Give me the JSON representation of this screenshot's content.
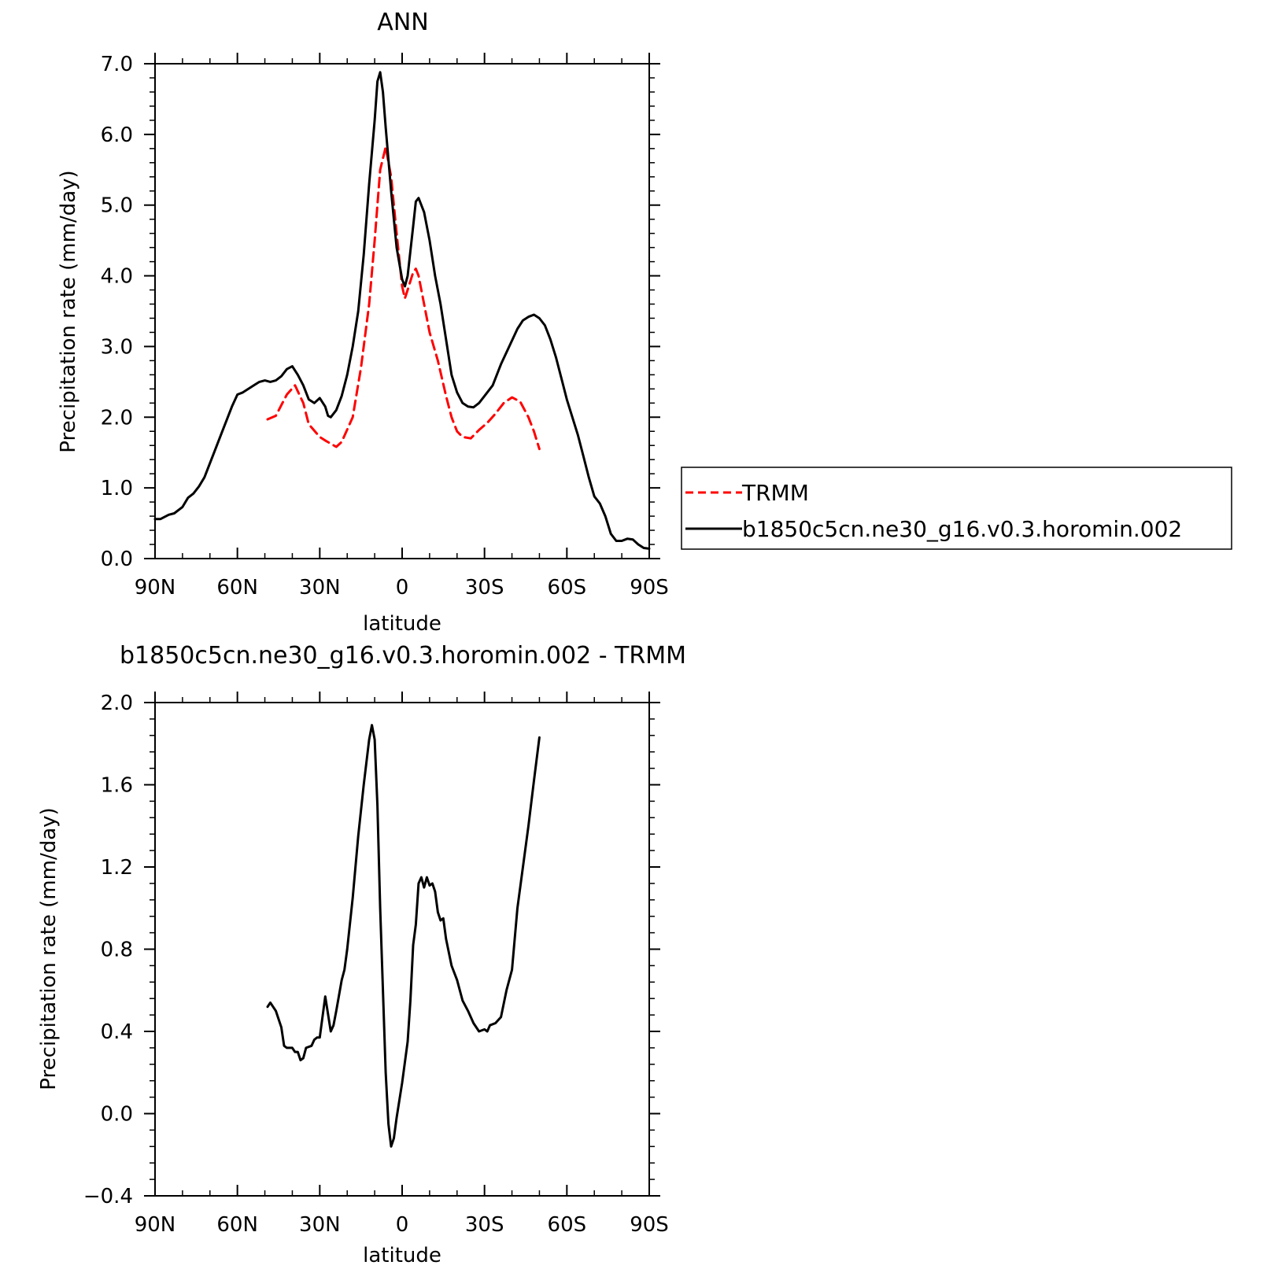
{
  "chart_data": [
    {
      "type": "line",
      "title": "ANN",
      "xlabel": "latitude",
      "ylabel": "Precipitation rate (mm/day)",
      "xlim": [
        90,
        -90
      ],
      "ylim": [
        0,
        7
      ],
      "x_ticks": [
        90,
        60,
        30,
        0,
        -30,
        -60,
        -90
      ],
      "x_tick_labels": [
        "90N",
        "60N",
        "30N",
        "0",
        "30S",
        "60S",
        "90S"
      ],
      "y_ticks": [
        0,
        1,
        2,
        3,
        4,
        5,
        6,
        7
      ],
      "y_tick_labels": [
        "0.0",
        "1.0",
        "2.0",
        "3.0",
        "4.0",
        "5.0",
        "6.0",
        "7.0"
      ],
      "legend_position": "right",
      "series": [
        {
          "name": "TRMM",
          "color": "#ff0000",
          "style": "dashed",
          "points": [
            [
              49,
              1.97
            ],
            [
              46,
              2.02
            ],
            [
              42,
              2.32
            ],
            [
              39,
              2.45
            ],
            [
              36,
              2.2
            ],
            [
              34,
              1.9
            ],
            [
              30,
              1.72
            ],
            [
              28,
              1.67
            ],
            [
              24,
              1.58
            ],
            [
              22,
              1.65
            ],
            [
              18,
              2.0
            ],
            [
              15,
              2.7
            ],
            [
              12,
              3.6
            ],
            [
              10,
              4.5
            ],
            [
              8,
              5.5
            ],
            [
              6,
              5.82
            ],
            [
              4,
              5.4
            ],
            [
              2,
              4.6
            ],
            [
              0,
              3.85
            ],
            [
              -1,
              3.68
            ],
            [
              -2,
              3.8
            ],
            [
              -4,
              4.05
            ],
            [
              -5,
              4.1
            ],
            [
              -6,
              4.0
            ],
            [
              -8,
              3.6
            ],
            [
              -10,
              3.2
            ],
            [
              -13,
              2.8
            ],
            [
              -16,
              2.3
            ],
            [
              -18,
              2.0
            ],
            [
              -20,
              1.8
            ],
            [
              -22,
              1.72
            ],
            [
              -25,
              1.7
            ],
            [
              -28,
              1.82
            ],
            [
              -31,
              1.92
            ],
            [
              -34,
              2.05
            ],
            [
              -37,
              2.2
            ],
            [
              -40,
              2.28
            ],
            [
              -43,
              2.22
            ],
            [
              -46,
              2.0
            ],
            [
              -48,
              1.8
            ],
            [
              -50,
              1.55
            ]
          ]
        },
        {
          "name": "b1850c5cn.ne30_g16.v0.3.horomin.002",
          "color": "#000000",
          "style": "solid",
          "points": [
            [
              90,
              0.56
            ],
            [
              88,
              0.56
            ],
            [
              85,
              0.62
            ],
            [
              83,
              0.64
            ],
            [
              80,
              0.73
            ],
            [
              78,
              0.86
            ],
            [
              76,
              0.92
            ],
            [
              74,
              1.02
            ],
            [
              72,
              1.15
            ],
            [
              70,
              1.35
            ],
            [
              68,
              1.55
            ],
            [
              66,
              1.75
            ],
            [
              64,
              1.95
            ],
            [
              62,
              2.15
            ],
            [
              60,
              2.32
            ],
            [
              58,
              2.35
            ],
            [
              56,
              2.4
            ],
            [
              54,
              2.45
            ],
            [
              52,
              2.5
            ],
            [
              50,
              2.52
            ],
            [
              48,
              2.5
            ],
            [
              46,
              2.52
            ],
            [
              44,
              2.58
            ],
            [
              42,
              2.68
            ],
            [
              40,
              2.72
            ],
            [
              38,
              2.6
            ],
            [
              36,
              2.45
            ],
            [
              34,
              2.25
            ],
            [
              32,
              2.2
            ],
            [
              30,
              2.27
            ],
            [
              28,
              2.15
            ],
            [
              27,
              2.02
            ],
            [
              26,
              2.0
            ],
            [
              24,
              2.1
            ],
            [
              22,
              2.3
            ],
            [
              20,
              2.6
            ],
            [
              18,
              3.0
            ],
            [
              16,
              3.5
            ],
            [
              14,
              4.3
            ],
            [
              12,
              5.3
            ],
            [
              10,
              6.2
            ],
            [
              9,
              6.75
            ],
            [
              8,
              6.88
            ],
            [
              7,
              6.6
            ],
            [
              6,
              6.1
            ],
            [
              4,
              5.2
            ],
            [
              2,
              4.4
            ],
            [
              0,
              3.95
            ],
            [
              -1,
              3.85
            ],
            [
              -2,
              4.0
            ],
            [
              -4,
              4.7
            ],
            [
              -5,
              5.05
            ],
            [
              -6,
              5.1
            ],
            [
              -8,
              4.9
            ],
            [
              -10,
              4.5
            ],
            [
              -12,
              4.0
            ],
            [
              -14,
              3.6
            ],
            [
              -16,
              3.1
            ],
            [
              -18,
              2.6
            ],
            [
              -20,
              2.35
            ],
            [
              -22,
              2.2
            ],
            [
              -24,
              2.15
            ],
            [
              -26,
              2.14
            ],
            [
              -28,
              2.2
            ],
            [
              -30,
              2.3
            ],
            [
              -33,
              2.45
            ],
            [
              -36,
              2.75
            ],
            [
              -39,
              3.0
            ],
            [
              -42,
              3.25
            ],
            [
              -44,
              3.37
            ],
            [
              -46,
              3.42
            ],
            [
              -48,
              3.45
            ],
            [
              -50,
              3.4
            ],
            [
              -52,
              3.3
            ],
            [
              -54,
              3.1
            ],
            [
              -56,
              2.85
            ],
            [
              -58,
              2.55
            ],
            [
              -60,
              2.25
            ],
            [
              -62,
              2.0
            ],
            [
              -64,
              1.75
            ],
            [
              -66,
              1.45
            ],
            [
              -68,
              1.15
            ],
            [
              -70,
              0.88
            ],
            [
              -72,
              0.78
            ],
            [
              -74,
              0.6
            ],
            [
              -76,
              0.35
            ],
            [
              -78,
              0.25
            ],
            [
              -80,
              0.25
            ],
            [
              -82,
              0.28
            ],
            [
              -84,
              0.27
            ],
            [
              -86,
              0.2
            ],
            [
              -88,
              0.15
            ],
            [
              -90,
              0.14
            ]
          ]
        }
      ]
    },
    {
      "type": "line",
      "title": "b1850c5cn.ne30_g16.v0.3.horomin.002 - TRMM",
      "xlabel": "latitude",
      "ylabel": "Precipitation rate (mm/day)",
      "xlim": [
        90,
        -90
      ],
      "ylim": [
        -0.4,
        2.0
      ],
      "x_ticks": [
        90,
        60,
        30,
        0,
        -30,
        -60,
        -90
      ],
      "x_tick_labels": [
        "90N",
        "60N",
        "30N",
        "0",
        "30S",
        "60S",
        "90S"
      ],
      "y_ticks": [
        -0.4,
        0,
        0.4,
        0.8,
        1.2,
        1.6,
        2.0
      ],
      "y_tick_labels": [
        "−0.4",
        "0.0",
        "0.4",
        "0.8",
        "1.2",
        "1.6",
        "2.0"
      ],
      "series": [
        {
          "name": "",
          "color": "#000000",
          "style": "solid",
          "points": [
            [
              49,
              0.52
            ],
            [
              48,
              0.54
            ],
            [
              46,
              0.5
            ],
            [
              44,
              0.42
            ],
            [
              43,
              0.33
            ],
            [
              42,
              0.32
            ],
            [
              40,
              0.32
            ],
            [
              39,
              0.3
            ],
            [
              38,
              0.3
            ],
            [
              37,
              0.26
            ],
            [
              36,
              0.27
            ],
            [
              35,
              0.32
            ],
            [
              33,
              0.33
            ],
            [
              32,
              0.36
            ],
            [
              31,
              0.37
            ],
            [
              30,
              0.37
            ],
            [
              28,
              0.57
            ],
            [
              26,
              0.4
            ],
            [
              25,
              0.43
            ],
            [
              24,
              0.5
            ],
            [
              22,
              0.65
            ],
            [
              21,
              0.7
            ],
            [
              20,
              0.8
            ],
            [
              18,
              1.05
            ],
            [
              16,
              1.35
            ],
            [
              14,
              1.6
            ],
            [
              12,
              1.82
            ],
            [
              11,
              1.89
            ],
            [
              10,
              1.82
            ],
            [
              9,
              1.5
            ],
            [
              8,
              1.0
            ],
            [
              7,
              0.6
            ],
            [
              6,
              0.2
            ],
            [
              5,
              -0.05
            ],
            [
              4,
              -0.16
            ],
            [
              3,
              -0.12
            ],
            [
              2,
              -0.02
            ],
            [
              0,
              0.15
            ],
            [
              -2,
              0.35
            ],
            [
              -3,
              0.55
            ],
            [
              -4,
              0.82
            ],
            [
              -5,
              0.92
            ],
            [
              -6,
              1.12
            ],
            [
              -7,
              1.15
            ],
            [
              -8,
              1.1
            ],
            [
              -9,
              1.15
            ],
            [
              -10,
              1.11
            ],
            [
              -11,
              1.12
            ],
            [
              -12,
              1.08
            ],
            [
              -13,
              0.98
            ],
            [
              -14,
              0.94
            ],
            [
              -15,
              0.95
            ],
            [
              -16,
              0.85
            ],
            [
              -18,
              0.72
            ],
            [
              -20,
              0.65
            ],
            [
              -22,
              0.55
            ],
            [
              -24,
              0.5
            ],
            [
              -26,
              0.44
            ],
            [
              -28,
              0.4
            ],
            [
              -30,
              0.41
            ],
            [
              -31,
              0.4
            ],
            [
              -32,
              0.43
            ],
            [
              -34,
              0.44
            ],
            [
              -36,
              0.47
            ],
            [
              -38,
              0.6
            ],
            [
              -40,
              0.7
            ],
            [
              -42,
              1.0
            ],
            [
              -44,
              1.2
            ],
            [
              -46,
              1.4
            ],
            [
              -48,
              1.62
            ],
            [
              -50,
              1.83
            ]
          ]
        }
      ]
    }
  ]
}
